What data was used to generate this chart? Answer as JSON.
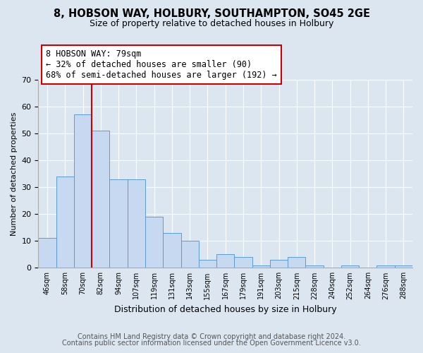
{
  "title1": "8, HOBSON WAY, HOLBURY, SOUTHAMPTON, SO45 2GE",
  "title2": "Size of property relative to detached houses in Holbury",
  "xlabel": "Distribution of detached houses by size in Holbury",
  "ylabel": "Number of detached properties",
  "bar_labels": [
    "46sqm",
    "58sqm",
    "70sqm",
    "82sqm",
    "94sqm",
    "107sqm",
    "119sqm",
    "131sqm",
    "143sqm",
    "155sqm",
    "167sqm",
    "179sqm",
    "191sqm",
    "203sqm",
    "215sqm",
    "228sqm",
    "240sqm",
    "252sqm",
    "264sqm",
    "276sqm",
    "288sqm"
  ],
  "bar_values": [
    11,
    34,
    57,
    51,
    33,
    33,
    19,
    13,
    10,
    3,
    5,
    4,
    1,
    3,
    4,
    1,
    0,
    1,
    0,
    1,
    1
  ],
  "bar_color": "#c6d9f1",
  "bar_edge_color": "#5b9bd5",
  "vline_color": "#cc0000",
  "annotation_box_text": "8 HOBSON WAY: 79sqm\n← 32% of detached houses are smaller (90)\n68% of semi-detached houses are larger (192) →",
  "annotation_box_facecolor": "#ffffff",
  "annotation_box_edgecolor": "#cc0000",
  "ylim": [
    0,
    70
  ],
  "yticks": [
    0,
    10,
    20,
    30,
    40,
    50,
    60,
    70
  ],
  "bg_color": "#dce6f1",
  "plot_bg_color": "#dce6f1",
  "footer1": "Contains HM Land Registry data © Crown copyright and database right 2024.",
  "footer2": "Contains public sector information licensed under the Open Government Licence v3.0.",
  "title1_fontsize": 10.5,
  "title2_fontsize": 9,
  "annotation_fontsize": 8.5,
  "footer_fontsize": 7,
  "ylabel_fontsize": 8,
  "xlabel_fontsize": 9
}
